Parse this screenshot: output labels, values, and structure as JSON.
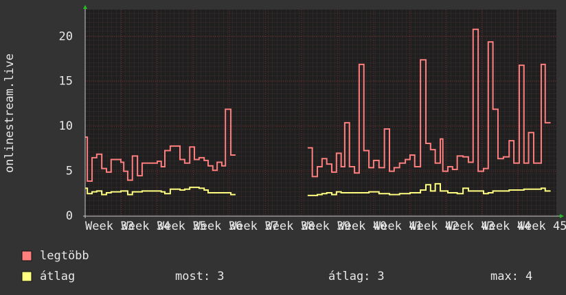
{
  "chart_data": {
    "type": "line",
    "step": true,
    "ylabel": "onlinestream.live",
    "xlim": [
      33,
      46.07
    ],
    "ylim": [
      0,
      23
    ],
    "xticks": [
      {
        "value": 33,
        "label": "Week 33"
      },
      {
        "value": 34,
        "label": "Week 34"
      },
      {
        "value": 35,
        "label": "Week 35"
      },
      {
        "value": 36,
        "label": "Week 36"
      },
      {
        "value": 37,
        "label": "Week 37"
      },
      {
        "value": 38,
        "label": "Week 38"
      },
      {
        "value": 39,
        "label": "Week 39"
      },
      {
        "value": 40,
        "label": "Week 40"
      },
      {
        "value": 41,
        "label": "Week 41"
      },
      {
        "value": 42,
        "label": "Week 42"
      },
      {
        "value": 43,
        "label": "Week 43"
      },
      {
        "value": 44,
        "label": "Week 44"
      },
      {
        "value": 45,
        "label": "Week 45"
      }
    ],
    "yticks": [
      0,
      5,
      10,
      15,
      20
    ],
    "grid": true,
    "x": [
      33.0,
      33.06,
      33.19,
      33.32,
      33.46,
      33.59,
      33.72,
      33.99,
      34.07,
      34.18,
      34.31,
      34.45,
      34.58,
      35.0,
      35.11,
      35.21,
      35.36,
      35.63,
      35.76,
      35.9,
      36.03,
      36.16,
      36.3,
      36.41,
      36.54,
      36.66,
      36.79,
      36.89,
      37.04,
      37.17,
      38.0,
      39.17,
      39.3,
      39.44,
      39.57,
      39.7,
      39.84,
      39.97,
      40.1,
      40.2,
      40.33,
      40.47,
      40.6,
      40.73,
      40.87,
      41.0,
      41.15,
      41.3,
      41.44,
      41.57,
      41.72,
      41.88,
      42.01,
      42.14,
      42.3,
      42.45,
      42.58,
      42.71,
      42.85,
      42.92,
      43.06,
      43.19,
      43.32,
      43.48,
      43.63,
      43.76,
      43.9,
      44.05,
      44.18,
      44.31,
      44.45,
      44.6,
      44.76,
      44.89,
      45.04,
      45.17,
      45.3,
      45.44,
      45.65,
      45.76,
      45.91
    ],
    "series": [
      {
        "name": "legtöbb",
        "color": "#ff7f7f",
        "values": [
          8.8,
          3.9,
          6.5,
          6.9,
          5.3,
          4.9,
          6.3,
          6.0,
          5.0,
          4.0,
          6.7,
          4.5,
          5.9,
          6.1,
          5.5,
          7.3,
          7.8,
          6.3,
          5.9,
          7.7,
          6.3,
          6.5,
          6.2,
          5.6,
          5.1,
          6.0,
          5.6,
          11.9,
          6.8,
          6.8,
          null,
          7.6,
          4.4,
          5.5,
          6.4,
          5.8,
          4.9,
          7.0,
          5.5,
          10.4,
          5.5,
          4.8,
          16.9,
          7.3,
          5.4,
          6.2,
          5.4,
          9.7,
          5.0,
          5.4,
          5.9,
          6.3,
          6.8,
          5.5,
          17.4,
          8.1,
          7.4,
          5.9,
          8.6,
          5.0,
          5.5,
          5.2,
          6.7,
          6.6,
          6.0,
          20.8,
          5.0,
          5.3,
          19.4,
          11.9,
          6.4,
          6.6,
          8.4,
          5.9,
          16.8,
          5.9,
          9.3,
          5.9,
          16.9,
          10.4,
          10.4
        ]
      },
      {
        "name": "átlag",
        "color": "#ffff80",
        "values": [
          3.1,
          2.5,
          2.7,
          2.8,
          2.4,
          2.6,
          2.7,
          2.8,
          2.8,
          2.4,
          2.7,
          2.7,
          2.8,
          2.8,
          2.7,
          2.5,
          3.0,
          2.9,
          3.0,
          3.2,
          3.2,
          3.1,
          2.9,
          2.6,
          2.6,
          2.6,
          2.6,
          2.6,
          2.4,
          2.4,
          null,
          2.3,
          2.3,
          2.4,
          2.5,
          2.6,
          2.4,
          2.7,
          2.6,
          2.6,
          2.6,
          2.6,
          2.6,
          2.6,
          2.7,
          2.7,
          2.5,
          2.5,
          2.4,
          2.4,
          2.5,
          2.5,
          2.6,
          2.6,
          2.9,
          3.5,
          2.8,
          3.6,
          2.8,
          2.8,
          2.6,
          2.6,
          2.5,
          3.1,
          2.8,
          2.8,
          2.8,
          2.5,
          2.6,
          2.8,
          2.8,
          2.8,
          2.9,
          2.9,
          2.9,
          3.0,
          3.0,
          3.0,
          3.1,
          2.8,
          2.8
        ]
      }
    ],
    "stats": [
      {
        "label": "most:",
        "value": 3
      },
      {
        "label": "átlag:",
        "value": 3
      },
      {
        "label": "max:",
        "value": 4
      }
    ]
  }
}
